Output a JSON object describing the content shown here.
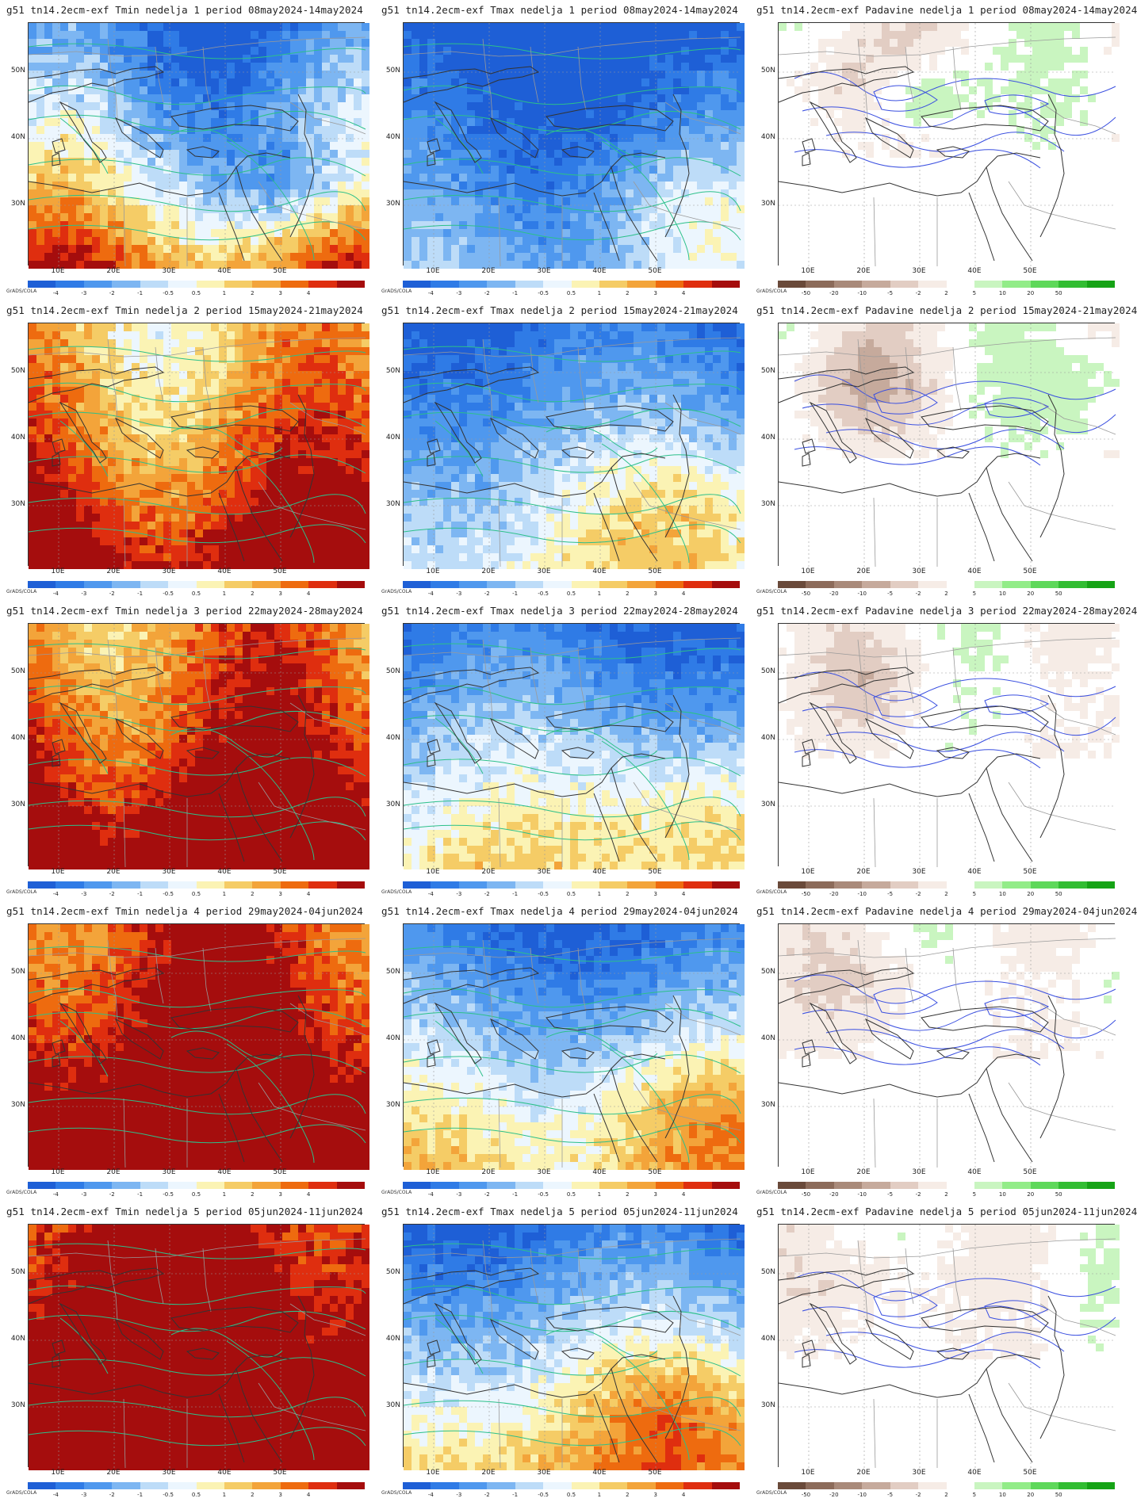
{
  "credit": "GrADS/COLA",
  "lat_ticks": [
    "50N",
    "40N",
    "30N"
  ],
  "lon_ticks": [
    "10E",
    "20E",
    "30E",
    "40E",
    "50E"
  ],
  "temp_scale": {
    "labels": [
      "-4",
      "-3",
      "-2",
      "-1",
      "-0.5",
      "0.5",
      "1",
      "2",
      "3",
      "4"
    ],
    "colors": [
      "#1e5fd6",
      "#2f7be6",
      "#4f98ee",
      "#7db6f2",
      "#bddcf8",
      "#ecf6fe",
      "#fbf3b4",
      "#f5cc66",
      "#f3a43a",
      "#ee6b0f",
      "#df2e0f",
      "#a50d0d"
    ]
  },
  "precip_scale": {
    "labels": [
      "-50",
      "-20",
      "-10",
      "-5",
      "-2",
      "2",
      "5",
      "10",
      "20",
      "50"
    ],
    "colors": [
      "#6a4a3a",
      "#8c6b5a",
      "#a98a7a",
      "#c6aa9c",
      "#e2cdc3",
      "#f6ece6",
      "#ffffff",
      "#c9f5c0",
      "#92ec88",
      "#5ed85a",
      "#32bd32",
      "#16a316"
    ]
  },
  "panels": [
    {
      "title": "g51  tn14.2ecm-exf Tmin nedelja 1 period 08may2024-14may2024",
      "kind": "tmin",
      "variant": 1
    },
    {
      "title": "g51  tn14.2ecm-exf Tmax nedelja 1 period 08may2024-14may2024",
      "kind": "tmax",
      "variant": 1
    },
    {
      "title": "g51  tn14.2ecm-exf Padavine nedelja 1 period 08may2024-14may2024",
      "kind": "precip",
      "variant": 1
    },
    {
      "title": "g51  tn14.2ecm-exf Tmin nedelja 2 period 15may2024-21may2024",
      "kind": "tmin",
      "variant": 2
    },
    {
      "title": "g51  tn14.2ecm-exf Tmax nedelja 2 period 15may2024-21may2024",
      "kind": "tmax",
      "variant": 2
    },
    {
      "title": "g51  tn14.2ecm-exf Padavine nedelja 2 period 15may2024-21may2024",
      "kind": "precip",
      "variant": 2
    },
    {
      "title": "g51  tn14.2ecm-exf Tmin nedelja 3 period 22may2024-28may2024",
      "kind": "tmin",
      "variant": 3
    },
    {
      "title": "g51  tn14.2ecm-exf Tmax nedelja 3 period 22may2024-28may2024",
      "kind": "tmax",
      "variant": 3
    },
    {
      "title": "g51  tn14.2ecm-exf Padavine nedelja 3 period 22may2024-28may2024",
      "kind": "precip",
      "variant": 3
    },
    {
      "title": "g51  tn14.2ecm-exf Tmin nedelja 4 period 29may2024-04jun2024",
      "kind": "tmin",
      "variant": 4
    },
    {
      "title": "g51  tn14.2ecm-exf Tmax nedelja 4 period 29may2024-04jun2024",
      "kind": "tmax",
      "variant": 4
    },
    {
      "title": "g51  tn14.2ecm-exf Padavine nedelja 4 period 29may2024-04jun2024",
      "kind": "precip",
      "variant": 4
    },
    {
      "title": "g51  tn14.2ecm-exf Tmin nedelja 5 period 05jun2024-11jun2024",
      "kind": "tmin",
      "variant": 5
    },
    {
      "title": "g51  tn14.2ecm-exf Tmax nedelja 5 period 05jun2024-11jun2024",
      "kind": "tmax",
      "variant": 5
    },
    {
      "title": "g51  tn14.2ecm-exf Padavine nedelja 5 period 05jun2024-11jun2024",
      "kind": "precip",
      "variant": 5
    }
  ]
}
